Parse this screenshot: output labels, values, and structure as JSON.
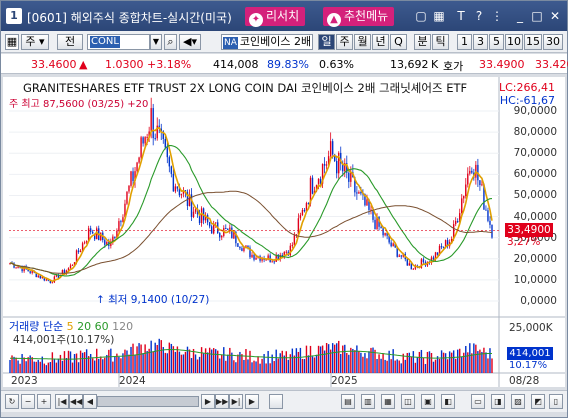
{
  "window": {
    "number": "1",
    "title": "[0601] 해외주식 종합차트-실시간(미국)",
    "research_label": "리서치",
    "research_icon": "lightbulb-icon",
    "recommend_label": "추천메뉴",
    "recommend_icon": "thumbs-up-icon"
  },
  "toolbar": {
    "market_label": "주",
    "prev_label": "전",
    "code_value": "CONL",
    "na_badge": "NA",
    "stock_name": "코인베이스 2배",
    "periods": [
      "일",
      "주",
      "월",
      "년",
      "Q",
      "분",
      "틱"
    ],
    "intervals": [
      "1",
      "3",
      "5",
      "10",
      "15",
      "30"
    ]
  },
  "quote": {
    "price": "33.4600",
    "change": "1.0300",
    "change_pct": "+3.18%",
    "volume": "414,008",
    "ratio": "89.83%",
    "turnover": "0.63%",
    "ask_qty": "13,692",
    "ask_unit": "K",
    "ask_label": "호가",
    "ask_price": "33.4900",
    "bid_price": "33.420"
  },
  "chart": {
    "title": "GRANITESHARES ETF TRUST 2X LONG COIN DAI  코인베이스 2배 그래닛셰어즈 ETF",
    "legend_top": "주 최고 87,5600 (03/25) +20",
    "lc": "LC:266,41",
    "hc": "HC:-61,67",
    "y_labels": [
      "90,0000",
      "80,0000",
      "70,0000",
      "60,0000",
      "50,0000",
      "40,0000",
      "30,0000",
      "20,0000",
      "10,0000",
      "0,0000"
    ],
    "current_price": "33,4900",
    "current_pct": "3,27%",
    "low_label": "최저 9,1400 (10/27)",
    "volume_legend": {
      "title": "거래량",
      "simple": "단순",
      "ma": [
        "5",
        "20",
        "60",
        "120"
      ]
    },
    "volume_value": "414,001주(10.17%)",
    "volume_axis": "25,000K",
    "volume_current": "414,001",
    "volume_pct": "10.17%",
    "x_labels": [
      "2023",
      "2024",
      "2025",
      "08/28"
    ],
    "colors": {
      "up": "#e0001b",
      "down": "#0033cc",
      "ma5": "#e0a000",
      "ma20": "#2a9a2a",
      "ma60": "#7a5030"
    }
  },
  "chart_data": {
    "type": "candlestick",
    "title": "GRANITESHARES ETF TRUST 2X LONG COIN DAI  코인베이스 2배 그래닛셰어즈 ETF",
    "y_range": [
      0,
      90
    ],
    "x_labels": [
      "2023",
      "2024",
      "2025",
      "08/28"
    ],
    "annotations": [
      {
        "text": "최고 87,5600 (03/25)",
        "value": 87.56
      },
      {
        "text": "최저 9,1400 (10/27)",
        "value": 9.14
      }
    ],
    "price_series": [
      [
        "2023-08",
        18
      ],
      [
        "2023-09",
        14
      ],
      [
        "2023-10",
        9.14
      ],
      [
        "2023-11",
        16
      ],
      [
        "2023-12",
        34
      ],
      [
        "2024-01",
        26
      ],
      [
        "2024-02",
        55
      ],
      [
        "2024-03",
        87.56
      ],
      [
        "2024-04",
        60
      ],
      [
        "2024-05",
        45
      ],
      [
        "2024-06",
        35
      ],
      [
        "2024-07",
        32
      ],
      [
        "2024-08",
        22
      ],
      [
        "2024-09",
        20
      ],
      [
        "2024-10",
        25
      ],
      [
        "2024-11",
        55
      ],
      [
        "2024-12",
        70
      ],
      [
        "2025-01",
        55
      ],
      [
        "2025-02",
        40
      ],
      [
        "2025-03",
        26
      ],
      [
        "2025-04",
        16
      ],
      [
        "2025-05",
        20
      ],
      [
        "2025-06",
        30
      ],
      [
        "2025-07",
        68
      ],
      [
        "2025-08",
        33.49
      ]
    ]
  }
}
